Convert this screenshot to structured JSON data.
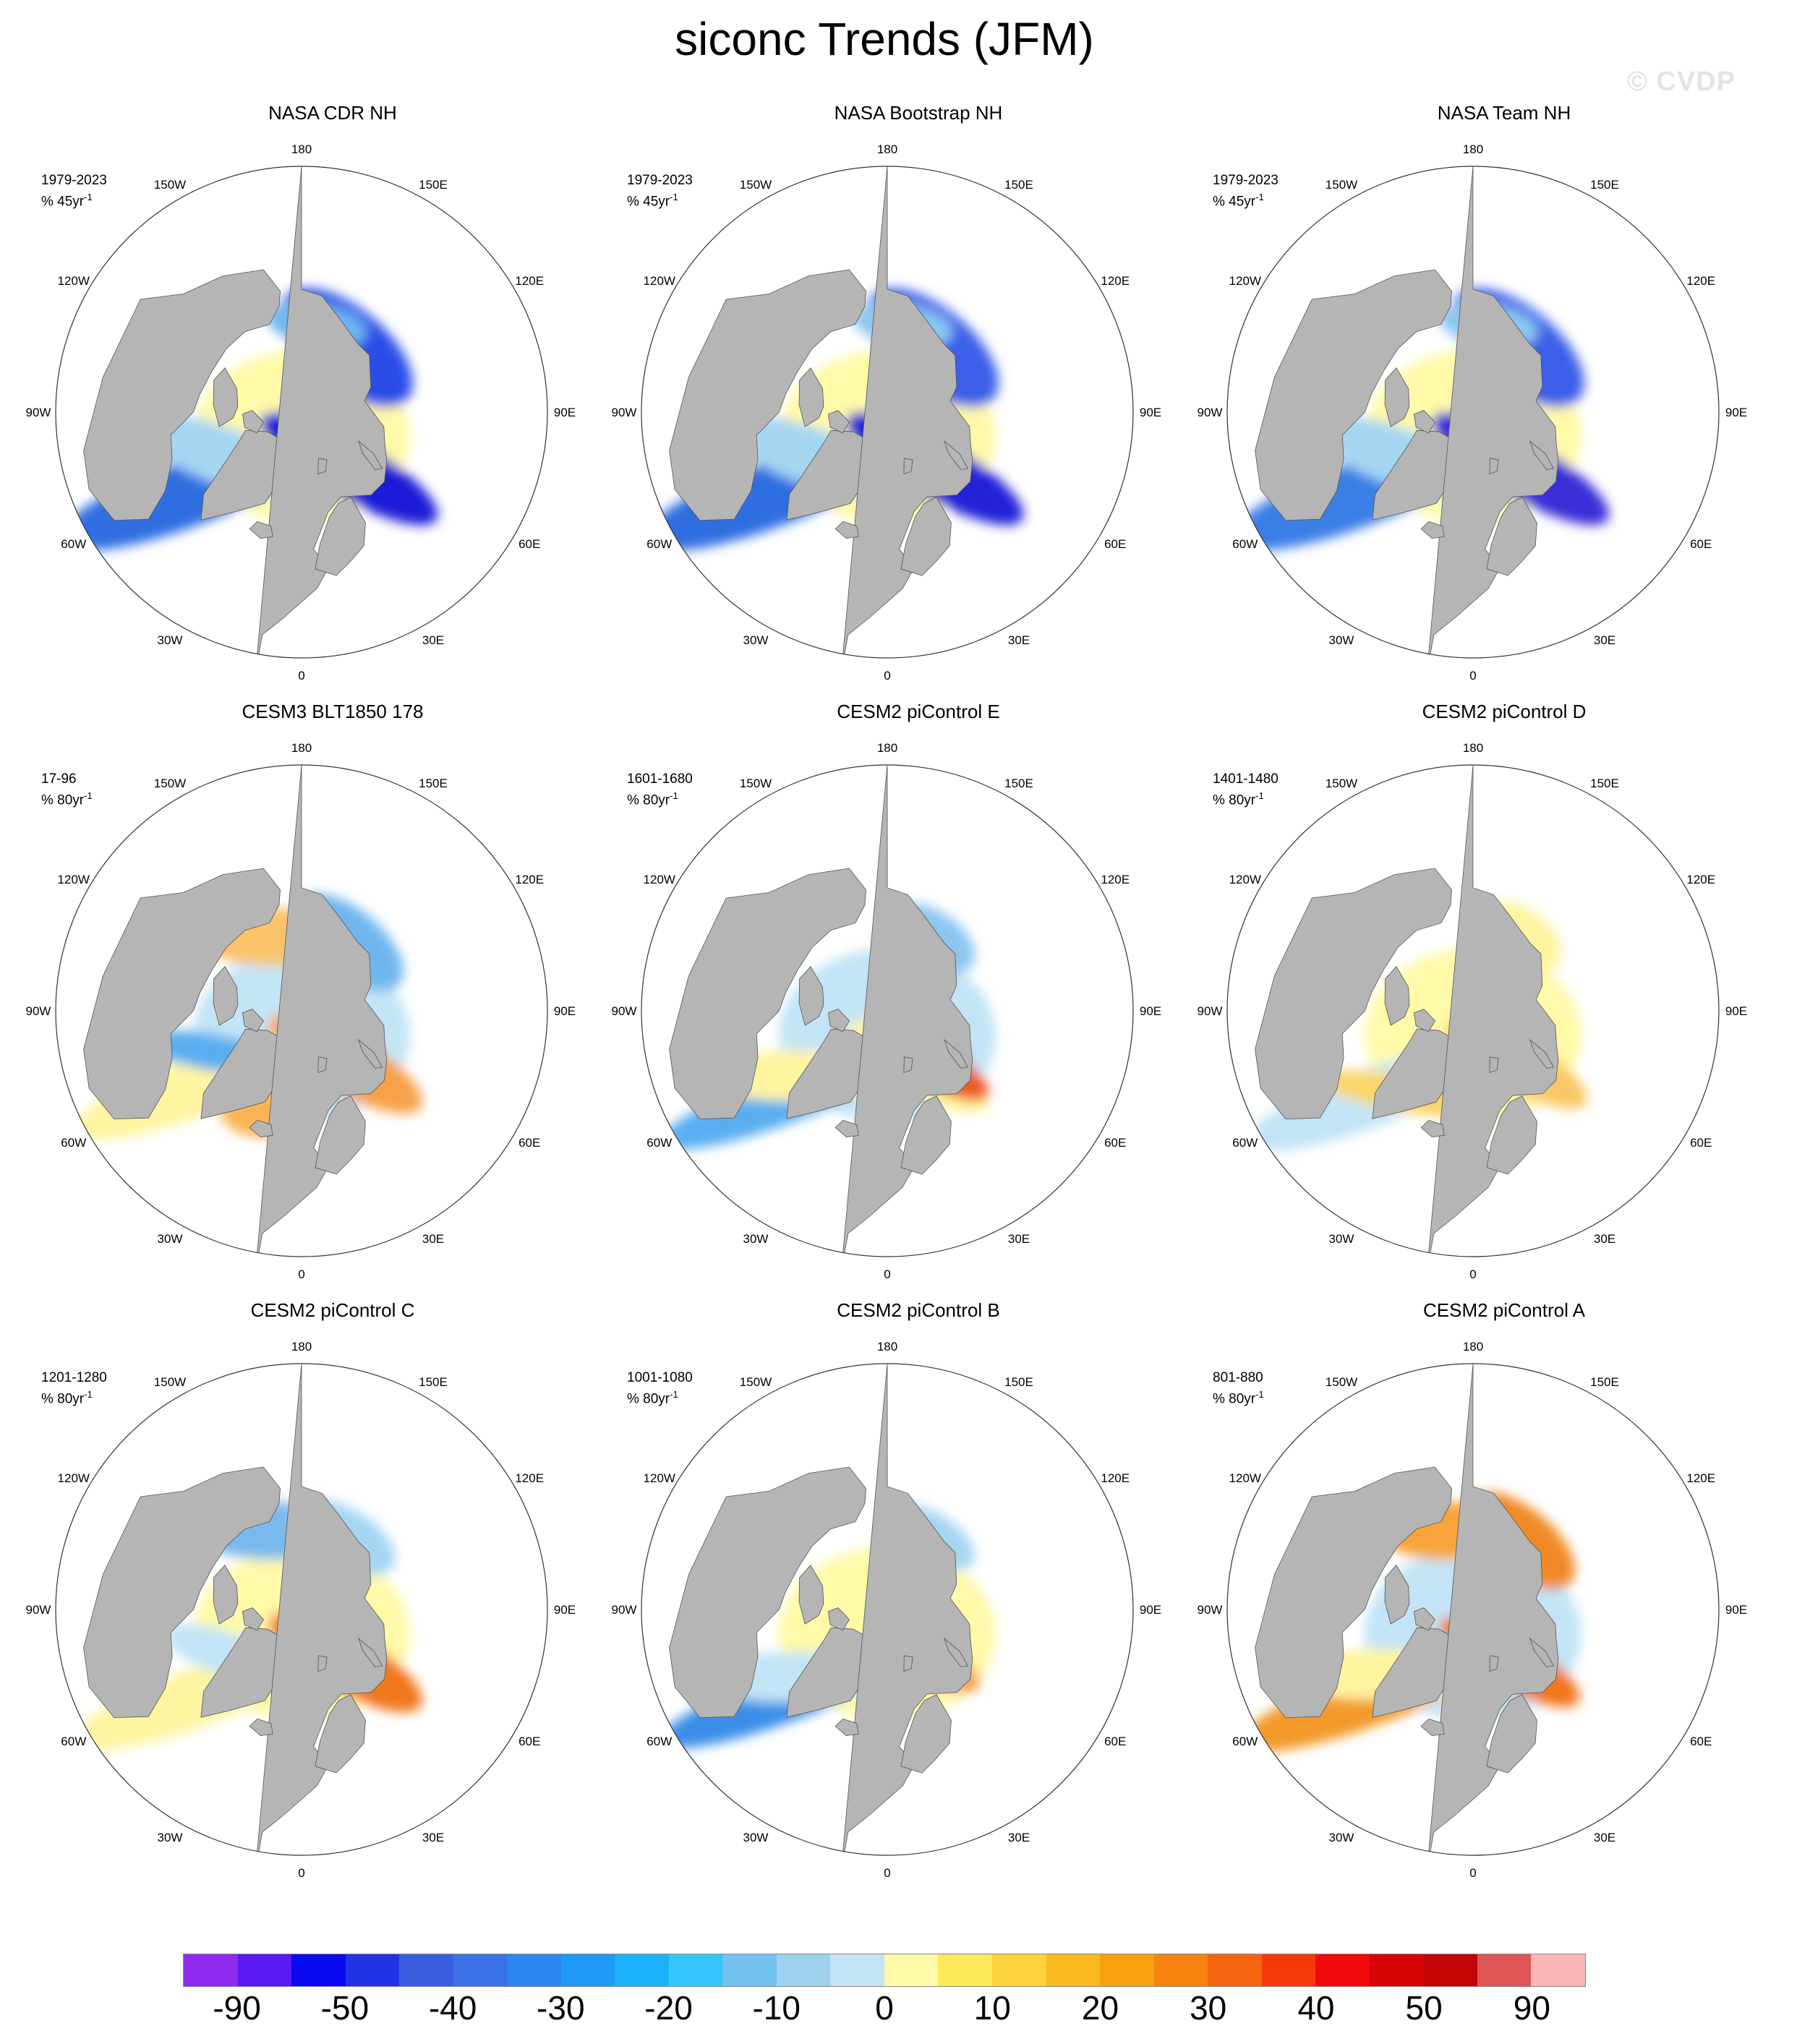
{
  "title": "siconc Trends (JFM)",
  "watermark": "© CVDP",
  "panels": [
    {
      "title": "NASA CDR NH",
      "period": "1979-2023",
      "units": "% 45yr",
      "units_sup": "-1",
      "blobs": [
        {
          "lon": 0,
          "lat": 85,
          "rx": 150,
          "ry": 120,
          "rot": 0,
          "color": "#fff9a8"
        },
        {
          "lon": 145,
          "lat": 74,
          "rx": 110,
          "ry": 55,
          "rot": 40,
          "color": "#2a4de8"
        },
        {
          "lon": 170,
          "lat": 72,
          "rx": 70,
          "ry": 30,
          "rot": 10,
          "color": "#6fb6ee"
        },
        {
          "lon": 40,
          "lat": 75,
          "rx": 140,
          "ry": 40,
          "rot": 30,
          "color": "#1a1ad8"
        },
        {
          "lon": -55,
          "lat": 60,
          "rx": 180,
          "ry": 45,
          "rot": -20,
          "color": "#2f6ee0"
        },
        {
          "lon": -60,
          "lat": 72,
          "rx": 120,
          "ry": 40,
          "rot": 20,
          "color": "#a4d6f2"
        }
      ]
    },
    {
      "title": "NASA Bootstrap NH",
      "period": "1979-2023",
      "units": "% 45yr",
      "units_sup": "-1",
      "blobs": [
        {
          "lon": 0,
          "lat": 85,
          "rx": 150,
          "ry": 120,
          "rot": 0,
          "color": "#fff9a8"
        },
        {
          "lon": 145,
          "lat": 74,
          "rx": 110,
          "ry": 55,
          "rot": 40,
          "color": "#3a5fe8"
        },
        {
          "lon": 170,
          "lat": 72,
          "rx": 70,
          "ry": 30,
          "rot": 10,
          "color": "#8cc6f0"
        },
        {
          "lon": 40,
          "lat": 75,
          "rx": 140,
          "ry": 40,
          "rot": 30,
          "color": "#2222d8"
        },
        {
          "lon": -55,
          "lat": 60,
          "rx": 180,
          "ry": 45,
          "rot": -20,
          "color": "#2f6ee0"
        },
        {
          "lon": -60,
          "lat": 72,
          "rx": 120,
          "ry": 40,
          "rot": 20,
          "color": "#a4d6f2"
        }
      ]
    },
    {
      "title": "NASA Team NH",
      "period": "1979-2023",
      "units": "% 45yr",
      "units_sup": "-1",
      "blobs": [
        {
          "lon": 0,
          "lat": 85,
          "rx": 150,
          "ry": 120,
          "rot": 0,
          "color": "#fff9a8"
        },
        {
          "lon": 145,
          "lat": 74,
          "rx": 110,
          "ry": 55,
          "rot": 40,
          "color": "#3a5fe8"
        },
        {
          "lon": 170,
          "lat": 72,
          "rx": 70,
          "ry": 30,
          "rot": 10,
          "color": "#8cc6f0"
        },
        {
          "lon": 40,
          "lat": 75,
          "rx": 140,
          "ry": 40,
          "rot": 30,
          "color": "#3b2fd8"
        },
        {
          "lon": -55,
          "lat": 60,
          "rx": 180,
          "ry": 45,
          "rot": -20,
          "color": "#3a7ee6"
        },
        {
          "lon": -60,
          "lat": 72,
          "rx": 120,
          "ry": 40,
          "rot": 20,
          "color": "#a4d6f2"
        }
      ]
    },
    {
      "title": "CESM3 BLT1850 178",
      "period": "17-96",
      "units": "% 80yr",
      "units_sup": "-1",
      "blobs": [
        {
          "lon": 0,
          "lat": 85,
          "rx": 150,
          "ry": 120,
          "rot": 0,
          "color": "#c2e4f6"
        },
        {
          "lon": -160,
          "lat": 74,
          "rx": 110,
          "ry": 40,
          "rot": 0,
          "color": "#fbc36a"
        },
        {
          "lon": 145,
          "lat": 73,
          "rx": 90,
          "ry": 45,
          "rot": 40,
          "color": "#6fb6ee"
        },
        {
          "lon": 40,
          "lat": 76,
          "rx": 120,
          "ry": 40,
          "rot": 30,
          "color": "#f7a14a"
        },
        {
          "lon": -20,
          "lat": 68,
          "rx": 60,
          "ry": 35,
          "rot": 0,
          "color": "#f8b454"
        },
        {
          "lon": -55,
          "lat": 62,
          "rx": 170,
          "ry": 40,
          "rot": -20,
          "color": "#fff4a0"
        },
        {
          "lon": -65,
          "lat": 70,
          "rx": 100,
          "ry": 25,
          "rot": 10,
          "color": "#5aaef0"
        }
      ]
    },
    {
      "title": "CESM2 piControl E",
      "period": "1601-1680",
      "units": "% 80yr",
      "units_sup": "-1",
      "blobs": [
        {
          "lon": 0,
          "lat": 85,
          "rx": 150,
          "ry": 120,
          "rot": 0,
          "color": "#c2e4f6"
        },
        {
          "lon": 30,
          "lat": 77,
          "rx": 110,
          "ry": 40,
          "rot": 30,
          "color": "#fff4a0"
        },
        {
          "lon": 40,
          "lat": 76,
          "rx": 90,
          "ry": 30,
          "rot": 30,
          "color": "#ec5a26"
        },
        {
          "lon": -50,
          "lat": 62,
          "rx": 180,
          "ry": 35,
          "rot": -20,
          "color": "#5aaef0"
        },
        {
          "lon": -55,
          "lat": 67,
          "rx": 140,
          "ry": 35,
          "rot": 0,
          "color": "#fff4a0"
        },
        {
          "lon": 150,
          "lat": 73,
          "rx": 70,
          "ry": 40,
          "rot": 30,
          "color": "#8cc6f0"
        }
      ]
    },
    {
      "title": "CESM2 piControl D",
      "period": "1401-1480",
      "units": "% 80yr",
      "units_sup": "-1",
      "blobs": [
        {
          "lon": 0,
          "lat": 85,
          "rx": 150,
          "ry": 120,
          "rot": 0,
          "color": "#fff9a8"
        },
        {
          "lon": 150,
          "lat": 73,
          "rx": 70,
          "ry": 45,
          "rot": 30,
          "color": "#fff4a0"
        },
        {
          "lon": 40,
          "lat": 76,
          "rx": 110,
          "ry": 35,
          "rot": 30,
          "color": "#f9c865"
        },
        {
          "lon": -50,
          "lat": 62,
          "rx": 180,
          "ry": 40,
          "rot": -20,
          "color": "#c2e4f6"
        },
        {
          "lon": -40,
          "lat": 68,
          "rx": 120,
          "ry": 25,
          "rot": 10,
          "color": "#f9d66a"
        }
      ]
    },
    {
      "title": "CESM2 piControl C",
      "period": "1201-1280",
      "units": "% 80yr",
      "units_sup": "-1",
      "blobs": [
        {
          "lon": 0,
          "lat": 85,
          "rx": 150,
          "ry": 120,
          "rot": 0,
          "color": "#fff9a8"
        },
        {
          "lon": -160,
          "lat": 73,
          "rx": 110,
          "ry": 40,
          "rot": 0,
          "color": "#7ab9ee"
        },
        {
          "lon": 150,
          "lat": 73,
          "rx": 80,
          "ry": 40,
          "rot": 30,
          "color": "#a4d6f2"
        },
        {
          "lon": 40,
          "lat": 76,
          "rx": 120,
          "ry": 40,
          "rot": 30,
          "color": "#f0771f"
        },
        {
          "lon": -50,
          "lat": 62,
          "rx": 180,
          "ry": 40,
          "rot": -20,
          "color": "#fff4a0"
        },
        {
          "lon": -60,
          "lat": 72,
          "rx": 90,
          "ry": 30,
          "rot": 20,
          "color": "#c2e4f6"
        }
      ]
    },
    {
      "title": "CESM2 piControl B",
      "period": "1001-1080",
      "units": "% 80yr",
      "units_sup": "-1",
      "blobs": [
        {
          "lon": 0,
          "lat": 85,
          "rx": 150,
          "ry": 120,
          "rot": 0,
          "color": "#fff9a8"
        },
        {
          "lon": 150,
          "lat": 73,
          "rx": 70,
          "ry": 35,
          "rot": 30,
          "color": "#a4d6f2"
        },
        {
          "lon": 40,
          "lat": 77,
          "rx": 80,
          "ry": 30,
          "rot": 30,
          "color": "#f7a14a"
        },
        {
          "lon": -50,
          "lat": 62,
          "rx": 180,
          "ry": 35,
          "rot": -20,
          "color": "#3a8ee8"
        },
        {
          "lon": -55,
          "lat": 66,
          "rx": 140,
          "ry": 35,
          "rot": 0,
          "color": "#c2e4f6"
        }
      ]
    },
    {
      "title": "CESM2 piControl A",
      "period": "801-880",
      "units": "% 80yr",
      "units_sup": "-1",
      "blobs": [
        {
          "lon": 0,
          "lat": 85,
          "rx": 150,
          "ry": 120,
          "rot": 0,
          "color": "#c2e4f6"
        },
        {
          "lon": -160,
          "lat": 73,
          "rx": 90,
          "ry": 40,
          "rot": 0,
          "color": "#f9a43a"
        },
        {
          "lon": 145,
          "lat": 73,
          "rx": 90,
          "ry": 45,
          "rot": 40,
          "color": "#f08a25"
        },
        {
          "lon": 35,
          "lat": 77,
          "rx": 110,
          "ry": 35,
          "rot": 30,
          "color": "#f0771f"
        },
        {
          "lon": -50,
          "lat": 62,
          "rx": 190,
          "ry": 40,
          "rot": -20,
          "color": "#f39a2c"
        },
        {
          "lon": -55,
          "lat": 67,
          "rx": 150,
          "ry": 35,
          "rot": 0,
          "color": "#fff4a0"
        }
      ]
    }
  ],
  "lon_labels": [
    "180",
    "150E",
    "120E",
    "90E",
    "60E",
    "30E",
    "0",
    "30W",
    "60W",
    "90W",
    "120W",
    "150W"
  ],
  "colorbar": {
    "colors": [
      "#8f2af0",
      "#5a1af0",
      "#0a0af0",
      "#2233e6",
      "#3a5ce0",
      "#3a70e6",
      "#2a86f0",
      "#1e9af6",
      "#1ab2fa",
      "#36c6fc",
      "#74c2f0",
      "#9ed2ef",
      "#c2e4f6",
      "#fff9a8",
      "#fde85a",
      "#fdd23a",
      "#fcb821",
      "#f9a010",
      "#f7840e",
      "#f5640e",
      "#f53a0a",
      "#f20a0a",
      "#d60404",
      "#c20606",
      "#de5656",
      "#f8b6b6"
    ],
    "labels": [
      "-90",
      "-50",
      "-40",
      "-30",
      "-20",
      "-10",
      "0",
      "10",
      "20",
      "30",
      "40",
      "50",
      "90"
    ]
  },
  "colors": {
    "land": "#b5b5b5",
    "ocean": "#ffffff",
    "outline": "#333333"
  }
}
